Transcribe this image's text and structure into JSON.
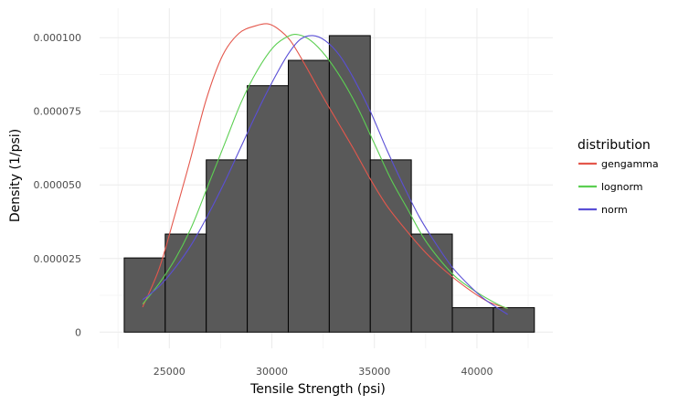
{
  "chart_data": {
    "type": "bar",
    "title": "",
    "xlabel": "Tensile Strength (psi)",
    "ylabel": "Density (1/psi)",
    "xlim": [
      21600,
      43700
    ],
    "ylim": [
      -5.5e-06,
      0.00011
    ],
    "x_ticks": [
      {
        "value": 25000,
        "label": "25000"
      },
      {
        "value": 30000,
        "label": "30000"
      },
      {
        "value": 35000,
        "label": "35000"
      },
      {
        "value": 40000,
        "label": "40000"
      }
    ],
    "y_ticks": [
      {
        "value": 0,
        "label": "0"
      },
      {
        "value": 2.5e-05,
        "label": "0.000025"
      },
      {
        "value": 5e-05,
        "label": "0.000050"
      },
      {
        "value": 7.5e-05,
        "label": "0.000075"
      },
      {
        "value": 0.0001,
        "label": "0.000100"
      }
    ],
    "histogram": {
      "fill": "#595959",
      "bins": [
        {
          "x0": 22800,
          "x1": 24800,
          "density": 2.52e-05
        },
        {
          "x0": 24800,
          "x1": 26800,
          "density": 3.33e-05
        },
        {
          "x0": 26800,
          "x1": 28800,
          "density": 5.85e-05
        },
        {
          "x0": 28800,
          "x1": 30800,
          "density": 8.37e-05
        },
        {
          "x0": 30800,
          "x1": 32800,
          "density": 9.23e-05
        },
        {
          "x0": 32800,
          "x1": 34800,
          "density": 0.0001007
        },
        {
          "x0": 34800,
          "x1": 36800,
          "density": 5.85e-05
        },
        {
          "x0": 36800,
          "x1": 38800,
          "density": 3.33e-05
        },
        {
          "x0": 38800,
          "x1": 40800,
          "density": 8.3e-06
        },
        {
          "x0": 40800,
          "x1": 42800,
          "density": 8.3e-06
        }
      ]
    },
    "legend": {
      "title": "distribution",
      "position": "right"
    },
    "series": [
      {
        "name": "gengamma",
        "color": "#e4574c",
        "x": [
          23700,
          24500,
          25200,
          26000,
          26800,
          27600,
          28400,
          29200,
          29800,
          30300,
          30900,
          31600,
          32400,
          33200,
          34000,
          34800,
          35600,
          36500,
          37500,
          38500,
          39500,
          40500,
          41500
        ],
        "y": [
          8.5e-06,
          2.15e-05,
          3.8e-05,
          5.8e-05,
          7.9e-05,
          9.4e-05,
          0.0001015,
          0.000104,
          0.0001047,
          0.000103,
          9.9e-05,
          9.1e-05,
          8.1e-05,
          7.15e-05,
          6.2e-05,
          5.2e-05,
          4.3e-05,
          3.5e-05,
          2.7e-05,
          2.05e-05,
          1.5e-05,
          1.05e-05,
          8e-06
        ]
      },
      {
        "name": "lognorm",
        "color": "#5ccf52",
        "x": [
          23700,
          24500,
          25300,
          26100,
          26900,
          27700,
          28500,
          29300,
          30100,
          30800,
          31300,
          31900,
          32600,
          33400,
          34200,
          35000,
          35800,
          36600,
          37400,
          38200,
          39000,
          40000,
          41000,
          41500
        ],
        "y": [
          9.5e-06,
          1.65e-05,
          2.5e-05,
          3.6e-05,
          5e-05,
          6.4e-05,
          7.8e-05,
          8.9e-05,
          9.7e-05,
          0.0001005,
          0.000101,
          9.9e-05,
          9.4e-05,
          8.6e-05,
          7.6e-05,
          6.4e-05,
          5.2e-05,
          4.2e-05,
          3.2e-05,
          2.45e-05,
          1.85e-05,
          1.35e-05,
          9.5e-06,
          8e-06
        ]
      },
      {
        "name": "norm",
        "color": "#5a4fd6",
        "x": [
          23700,
          24500,
          25300,
          26100,
          26900,
          27700,
          28500,
          29300,
          30100,
          30800,
          31400,
          32000,
          32600,
          33300,
          34000,
          34800,
          35600,
          36400,
          37200,
          38000,
          38800,
          39600,
          40400,
          41500
        ],
        "y": [
          1.1e-05,
          1.55e-05,
          2.2e-05,
          3e-05,
          4e-05,
          5.1e-05,
          6.3e-05,
          7.5e-05,
          8.6e-05,
          9.45e-05,
          9.95e-05,
          0.0001007,
          9.9e-05,
          9.4e-05,
          8.6e-05,
          7.5e-05,
          6.2e-05,
          5e-05,
          3.9e-05,
          3e-05,
          2.2e-05,
          1.6e-05,
          1.1e-05,
          6e-06
        ]
      }
    ]
  }
}
